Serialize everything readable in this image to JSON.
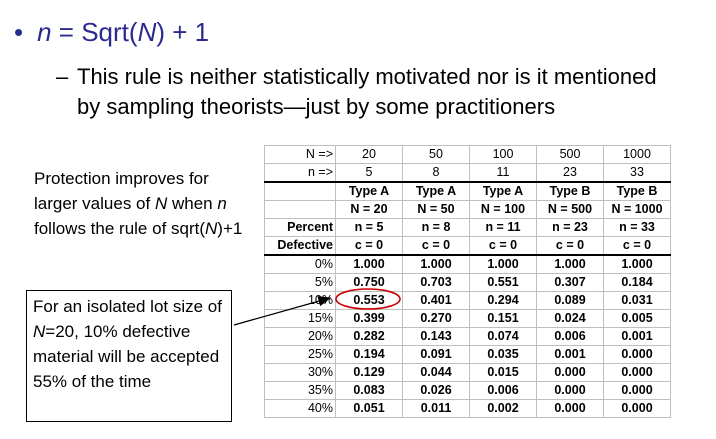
{
  "bullet": {
    "dot": "•",
    "n": "n",
    "mid": " = Sqrt(",
    "N": "N",
    "end": ") + 1"
  },
  "sub_point": {
    "dash": "–",
    "text": "This rule is neither statistically motivated nor is it mentioned by sampling theorists—just by some practitioners"
  },
  "side_note": {
    "p1": "Protection improves for larger values of ",
    "N": "N",
    "p2": " when ",
    "n": "n",
    "p3": " follows the rule of sqrt(",
    "N2": "N",
    "p4": ")+1"
  },
  "callout": {
    "p1": "For an isolated lot size of ",
    "N": "N",
    "p2": "=20, 10% defective material will be accepted 55% of the time"
  },
  "table": {
    "n_big_label": "N =>",
    "n_big": [
      "20",
      "50",
      "100",
      "500",
      "1000"
    ],
    "n_small_label": "n =>",
    "n_small": [
      "5",
      "8",
      "11",
      "23",
      "33"
    ],
    "types": [
      "Type A",
      "Type A",
      "Type A",
      "Type B",
      "Type B"
    ],
    "plan_N": [
      "N = 20",
      "N = 50",
      "N = 100",
      "N = 500",
      "N = 1000"
    ],
    "plan_n": [
      "n = 5",
      "n = 8",
      "n = 11",
      "n = 23",
      "n = 33"
    ],
    "plan_c": [
      "c = 0",
      "c = 0",
      "c = 0",
      "c = 0",
      "c = 0"
    ],
    "percent_label": "Percent",
    "defective_label": "Defective",
    "rows": [
      {
        "pct": "0%",
        "vals": [
          "1.000",
          "1.000",
          "1.000",
          "1.000",
          "1.000"
        ]
      },
      {
        "pct": "5%",
        "vals": [
          "0.750",
          "0.703",
          "0.551",
          "0.307",
          "0.184"
        ]
      },
      {
        "pct": "10%",
        "vals": [
          "0.553",
          "0.401",
          "0.294",
          "0.089",
          "0.031"
        ]
      },
      {
        "pct": "15%",
        "vals": [
          "0.399",
          "0.270",
          "0.151",
          "0.024",
          "0.005"
        ]
      },
      {
        "pct": "20%",
        "vals": [
          "0.282",
          "0.143",
          "0.074",
          "0.006",
          "0.001"
        ]
      },
      {
        "pct": "25%",
        "vals": [
          "0.194",
          "0.091",
          "0.035",
          "0.001",
          "0.000"
        ]
      },
      {
        "pct": "30%",
        "vals": [
          "0.129",
          "0.044",
          "0.015",
          "0.000",
          "0.000"
        ]
      },
      {
        "pct": "35%",
        "vals": [
          "0.083",
          "0.026",
          "0.006",
          "0.000",
          "0.000"
        ]
      },
      {
        "pct": "40%",
        "vals": [
          "0.051",
          "0.011",
          "0.002",
          "0.000",
          "0.000"
        ]
      }
    ]
  },
  "colors": {
    "bullet_text": "#2b2b8f",
    "highlight_ellipse": "#cc0000"
  }
}
